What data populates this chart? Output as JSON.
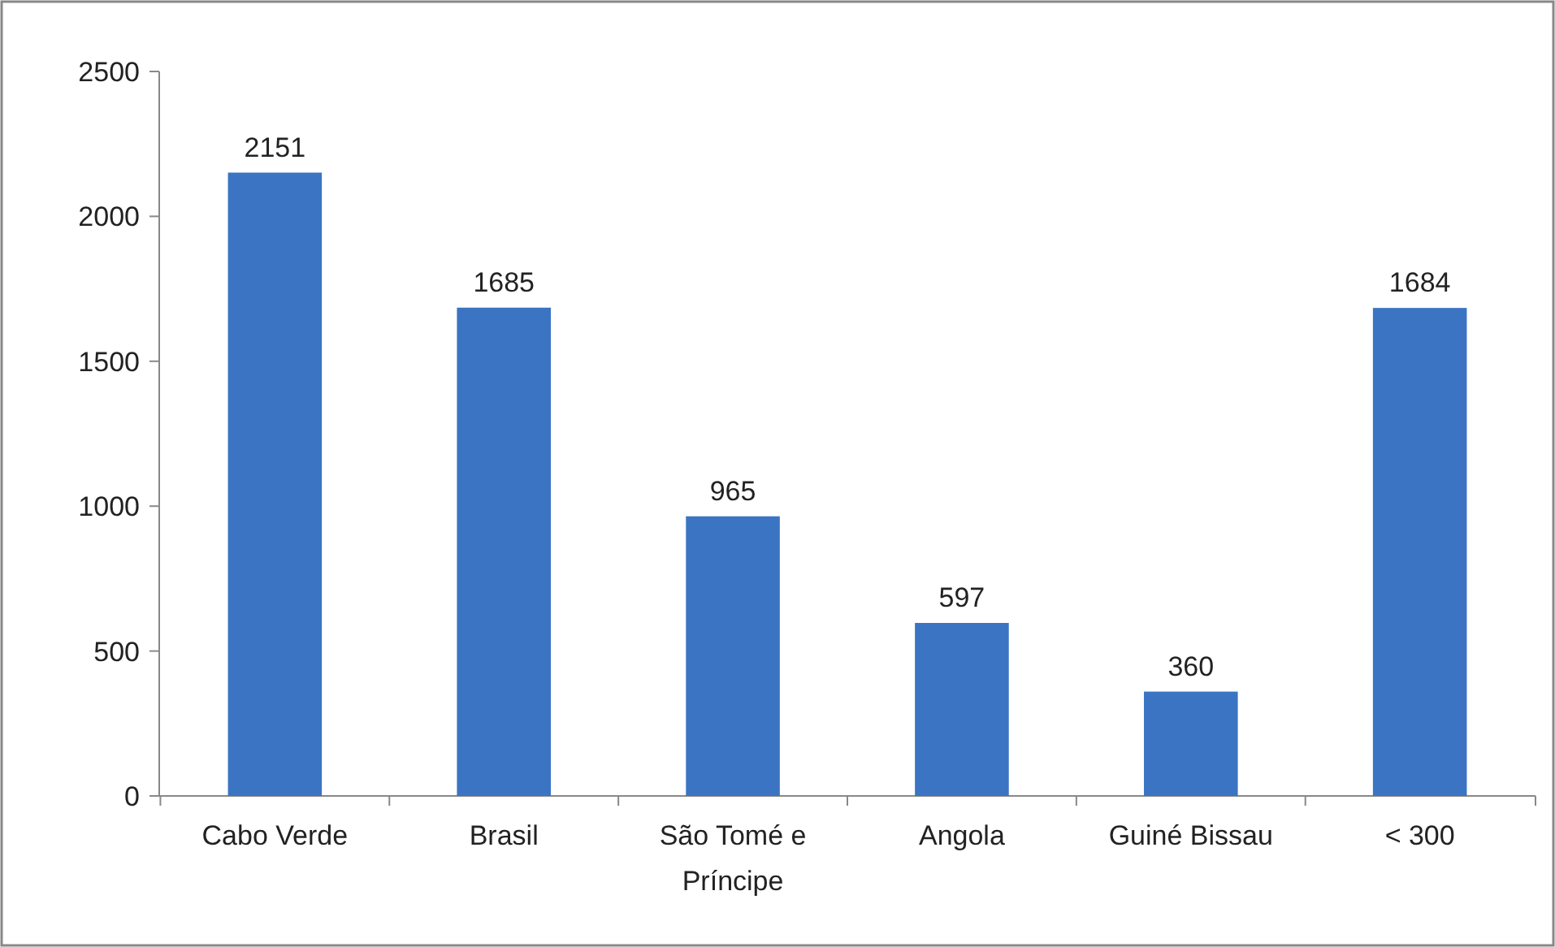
{
  "chart_data": {
    "type": "bar",
    "categories": [
      "Cabo Verde",
      "Brasil",
      "São Tomé e Príncipe",
      "Angola",
      "Guiné Bissau",
      "< 300"
    ],
    "values": [
      2151,
      1685,
      965,
      597,
      360,
      1684
    ],
    "color": "#3b74c2",
    "ylim": [
      0,
      2500
    ],
    "yticks": [
      0,
      500,
      1000,
      1500,
      2000,
      2500
    ],
    "grid": false,
    "data_labels": true
  }
}
